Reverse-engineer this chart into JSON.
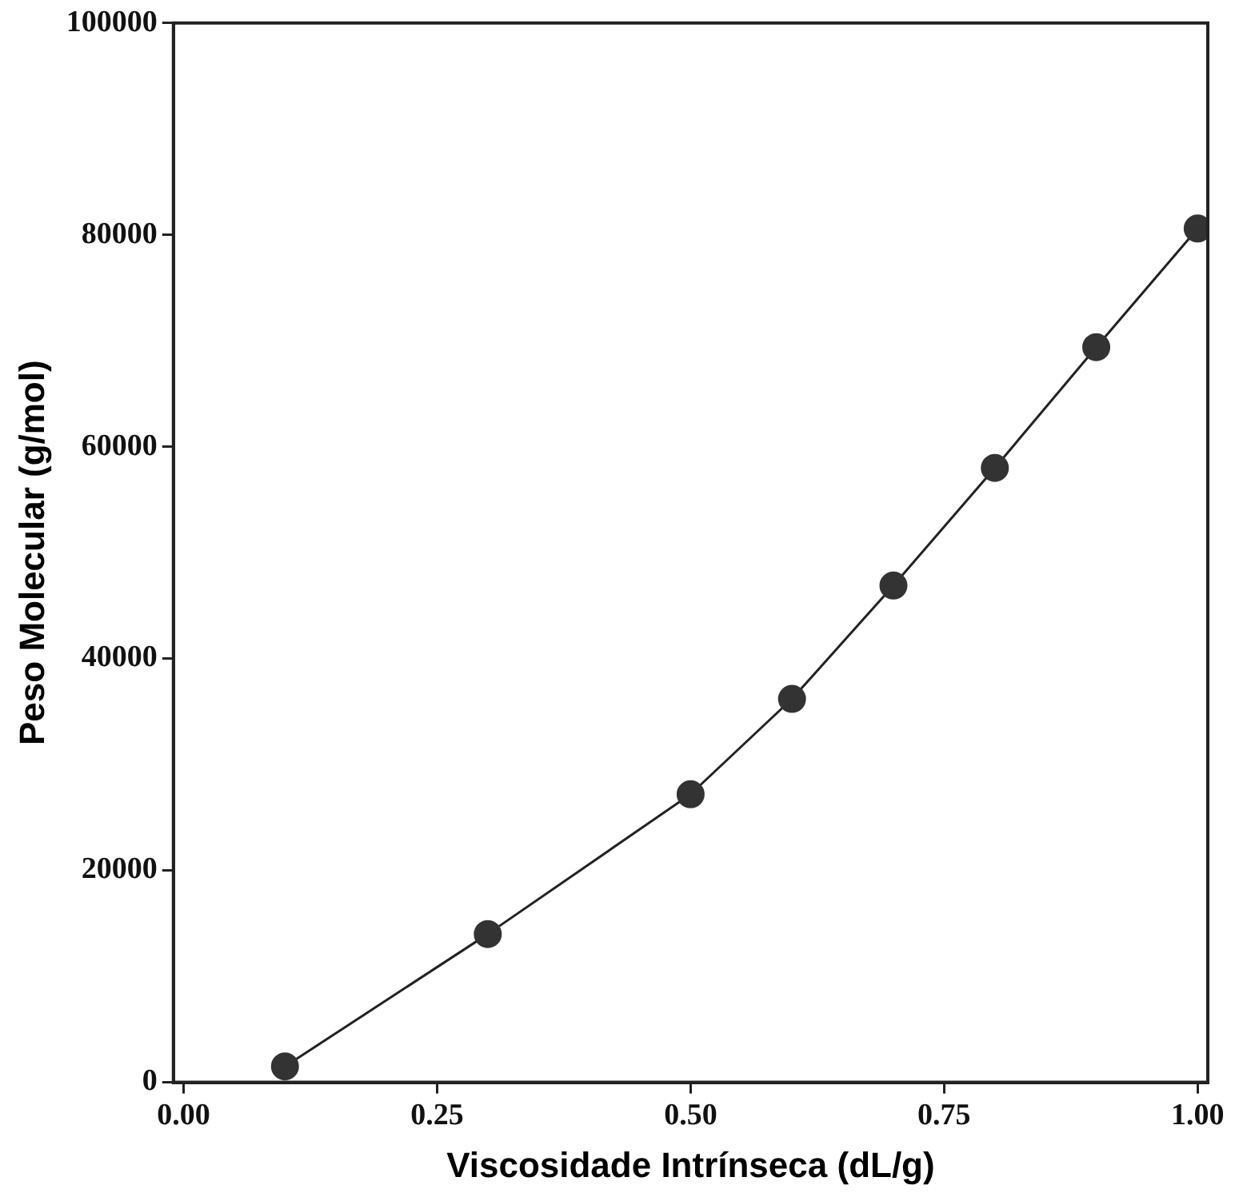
{
  "chart_data": {
    "type": "line",
    "xlabel": "Viscosidade Intrínseca (dL/g)",
    "ylabel": "Peso Molecular (g/mol)",
    "x": [
      0.1,
      0.3,
      0.5,
      0.6,
      0.7,
      0.8,
      0.9,
      1.0
    ],
    "series": [
      {
        "color": "#333333",
        "values": [
          1500,
          14000,
          27200,
          36200,
          46900,
          58000,
          69400,
          80600
        ]
      }
    ],
    "xlim": [
      -0.01,
      1.01
    ],
    "xticks": [
      {
        "value": 0,
        "label": "0.00"
      },
      {
        "value": 0.25,
        "label": "0.25"
      },
      {
        "value": 0.5,
        "label": "0.50"
      },
      {
        "value": 0.75,
        "label": "0.75"
      },
      {
        "value": 1,
        "label": "1.00"
      }
    ],
    "ylim": [
      0,
      100000
    ],
    "yticks": [
      0,
      20000,
      40000,
      60000,
      80000,
      100000
    ],
    "marker": "circle",
    "line_style": "solid"
  }
}
